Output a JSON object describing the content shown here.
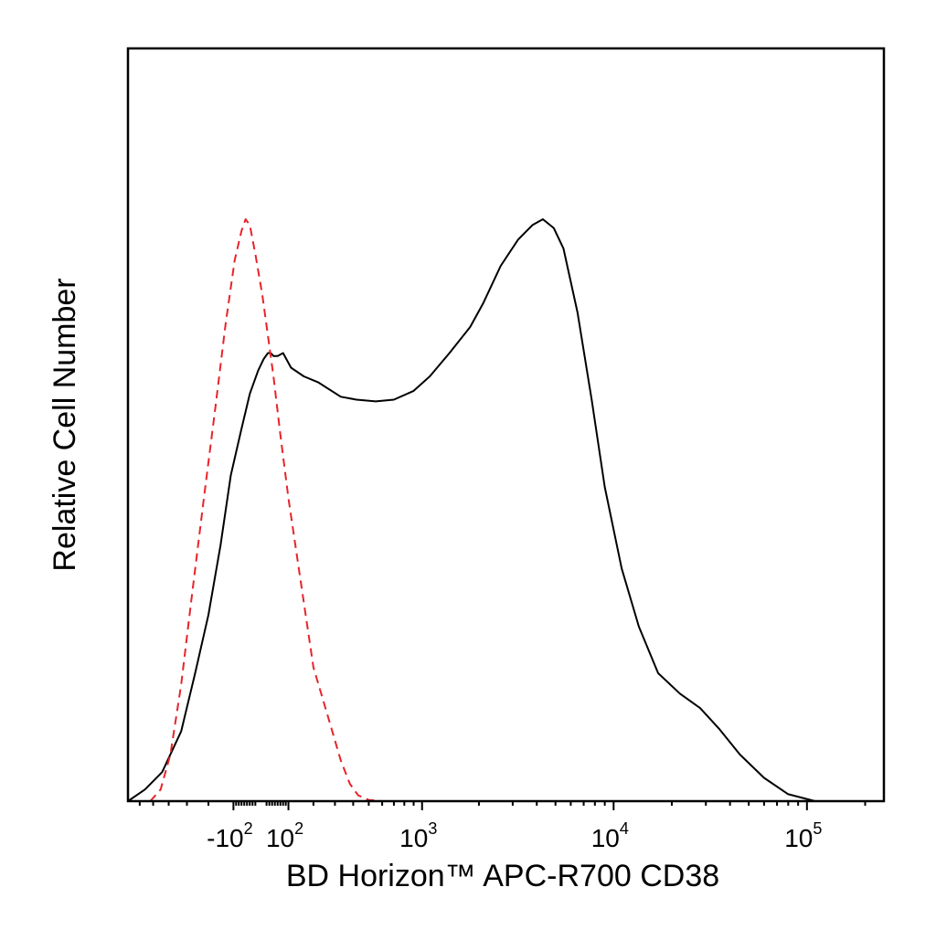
{
  "chart_data": {
    "type": "line",
    "title": "",
    "xlabel": "BD Horizon™ APC-R700 CD38",
    "ylabel": "Relative Cell Number",
    "x_scale": "biexponential",
    "xlim": [
      -700,
      250000
    ],
    "ylim": [
      0,
      1
    ],
    "grid": false,
    "legend": "none",
    "x_ticks": [
      {
        "value": -100,
        "base": "-10",
        "exp": "2"
      },
      {
        "value": 100,
        "base": "10",
        "exp": "2"
      },
      {
        "value": 1000,
        "base": "10",
        "exp": "3"
      },
      {
        "value": 10000,
        "base": "10",
        "exp": "4"
      },
      {
        "value": 100000,
        "base": "10",
        "exp": "5"
      }
    ],
    "series": [
      {
        "color": "#000000",
        "dash": "solid",
        "points": [
          [
            -700,
            0.0
          ],
          [
            -560,
            0.02
          ],
          [
            -440,
            0.05
          ],
          [
            -330,
            0.12
          ],
          [
            -260,
            0.22
          ],
          [
            -200,
            0.32
          ],
          [
            -150,
            0.44
          ],
          [
            -110,
            0.56
          ],
          [
            -70,
            0.64
          ],
          [
            -40,
            0.7
          ],
          [
            -10,
            0.74
          ],
          [
            10,
            0.76
          ],
          [
            25,
            0.77
          ],
          [
            35,
            0.77
          ],
          [
            45,
            0.765
          ],
          [
            60,
            0.765
          ],
          [
            80,
            0.77
          ],
          [
            110,
            0.745
          ],
          [
            160,
            0.73
          ],
          [
            220,
            0.72
          ],
          [
            330,
            0.695
          ],
          [
            420,
            0.69
          ],
          [
            550,
            0.687
          ],
          [
            700,
            0.69
          ],
          [
            900,
            0.705
          ],
          [
            1100,
            0.73
          ],
          [
            1400,
            0.77
          ],
          [
            1800,
            0.815
          ],
          [
            2100,
            0.855
          ],
          [
            2600,
            0.92
          ],
          [
            3200,
            0.965
          ],
          [
            3800,
            0.99
          ],
          [
            4300,
            1.0
          ],
          [
            4900,
            0.985
          ],
          [
            5500,
            0.95
          ],
          [
            6500,
            0.84
          ],
          [
            7700,
            0.69
          ],
          [
            9000,
            0.54
          ],
          [
            11000,
            0.4
          ],
          [
            13500,
            0.3
          ],
          [
            17000,
            0.22
          ],
          [
            22000,
            0.185
          ],
          [
            28000,
            0.16
          ],
          [
            35000,
            0.125
          ],
          [
            45000,
            0.08
          ],
          [
            60000,
            0.04
          ],
          [
            80000,
            0.012
          ],
          [
            110000,
            0.0
          ]
        ]
      },
      {
        "color": "#e8232a",
        "dash": "dashed",
        "points": [
          [
            -520,
            0.0
          ],
          [
            -450,
            0.02
          ],
          [
            -390,
            0.08
          ],
          [
            -330,
            0.2
          ],
          [
            -280,
            0.34
          ],
          [
            -220,
            0.52
          ],
          [
            -170,
            0.68
          ],
          [
            -130,
            0.82
          ],
          [
            -95,
            0.93
          ],
          [
            -70,
            0.98
          ],
          [
            -55,
            1.0
          ],
          [
            -40,
            0.99
          ],
          [
            -20,
            0.94
          ],
          [
            5,
            0.87
          ],
          [
            25,
            0.8
          ],
          [
            45,
            0.73
          ],
          [
            70,
            0.63
          ],
          [
            100,
            0.52
          ],
          [
            150,
            0.37
          ],
          [
            200,
            0.23
          ],
          [
            270,
            0.14
          ],
          [
            330,
            0.07
          ],
          [
            380,
            0.03
          ],
          [
            430,
            0.01
          ],
          [
            500,
            0.002
          ],
          [
            600,
            0.0
          ]
        ]
      }
    ]
  }
}
